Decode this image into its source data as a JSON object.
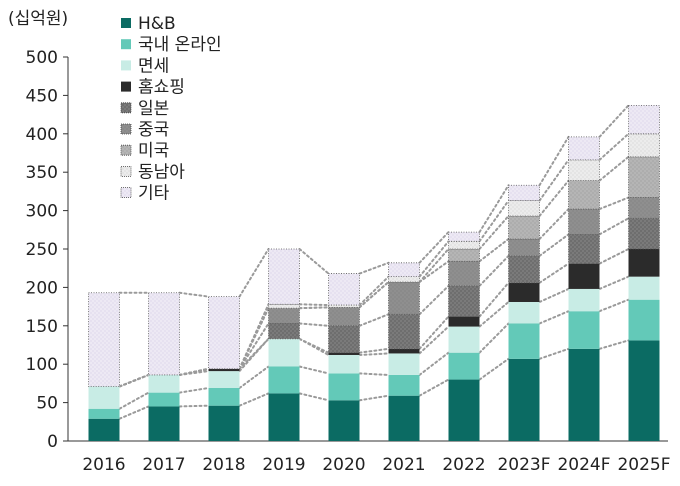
{
  "unit_label": "(십억원)",
  "chart_data": {
    "type": "bar",
    "stacked": true,
    "title": "",
    "xlabel": "",
    "ylabel": "(십억원)",
    "ylim": [
      0,
      500
    ],
    "yticks": [
      0,
      50,
      100,
      150,
      200,
      250,
      300,
      350,
      400,
      450,
      500
    ],
    "grid": false,
    "legend_position": "top-left",
    "connector_lines": true,
    "categories": [
      "2016",
      "2017",
      "2018",
      "2019",
      "2020",
      "2021",
      "2022",
      "2023F",
      "2024F",
      "2025F"
    ],
    "series": [
      {
        "name": "H&B",
        "color": "#0b6b63",
        "pattern": "solid",
        "values": [
          29,
          45,
          46,
          62,
          53,
          59,
          80,
          107,
          120,
          131
        ]
      },
      {
        "name": "국내 온라인",
        "color": "#63c9b8",
        "pattern": "solid",
        "values": [
          13,
          18,
          23,
          35,
          35,
          27,
          35,
          46,
          49,
          53
        ]
      },
      {
        "name": "면세",
        "color": "#c8ece5",
        "pattern": "solid",
        "values": [
          29,
          23,
          22,
          36,
          24,
          28,
          34,
          28,
          29,
          30
        ]
      },
      {
        "name": "홈쇼핑",
        "color": "#2b2b2b",
        "pattern": "solid",
        "values": [
          0,
          0,
          3,
          0,
          3,
          6,
          13,
          25,
          33,
          36
        ]
      },
      {
        "name": "일본",
        "color": "#6e6e6e",
        "pattern": "dots",
        "values": [
          0,
          0,
          0,
          20,
          35,
          45,
          40,
          35,
          38,
          40
        ]
      },
      {
        "name": "중국",
        "color": "#8a8a8a",
        "pattern": "dots",
        "values": [
          0,
          0,
          0,
          20,
          24,
          42,
          32,
          22,
          33,
          27
        ]
      },
      {
        "name": "미국",
        "color": "#b5b5b5",
        "pattern": "dots",
        "values": [
          0,
          0,
          0,
          0,
          0,
          0,
          16,
          30,
          37,
          53
        ]
      },
      {
        "name": "동남아",
        "color": "#e4e4e4",
        "pattern": "dots",
        "values": [
          0,
          0,
          0,
          5,
          3,
          7,
          10,
          20,
          27,
          30
        ]
      },
      {
        "name": "기타",
        "color": "#e6e1f0",
        "pattern": "dots",
        "values": [
          122,
          107,
          94,
          72,
          41,
          18,
          12,
          20,
          30,
          37
        ]
      }
    ]
  }
}
